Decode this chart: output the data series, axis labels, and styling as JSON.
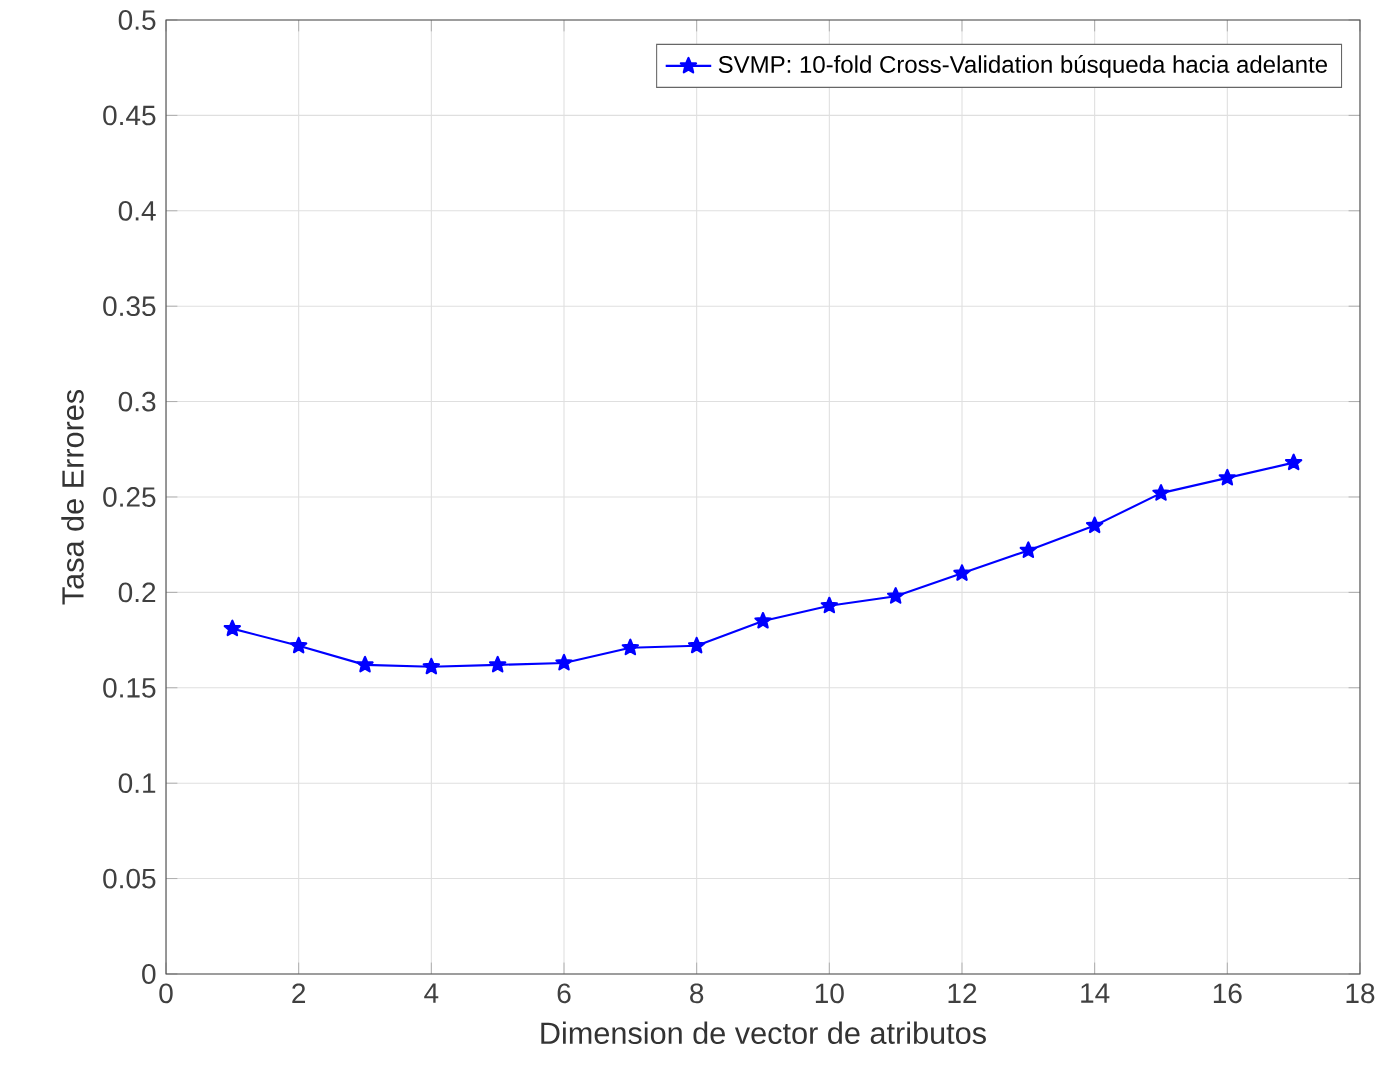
{
  "chart_data": {
    "type": "line",
    "xlabel": "Dimension de vector de atributos",
    "ylabel": "Tasa de Errores",
    "x": [
      1,
      2,
      3,
      4,
      5,
      6,
      7,
      8,
      9,
      10,
      11,
      12,
      13,
      14,
      15,
      16,
      17
    ],
    "series": [
      {
        "name": "SVMP: 10-fold Cross-Validation búsqueda hacia adelante",
        "color": "#0000ff",
        "values": [
          0.181,
          0.172,
          0.162,
          0.161,
          0.162,
          0.163,
          0.171,
          0.172,
          0.185,
          0.193,
          0.198,
          0.21,
          0.222,
          0.235,
          0.252,
          0.26,
          0.268
        ]
      }
    ],
    "xlim": [
      0,
      18
    ],
    "xticks": [
      0,
      2,
      4,
      6,
      8,
      10,
      12,
      14,
      16,
      18
    ],
    "ylim": [
      0,
      0.5
    ],
    "yticks": [
      0,
      0.05,
      0.1,
      0.15,
      0.2,
      0.25,
      0.3,
      0.35,
      0.4,
      0.45,
      0.5
    ],
    "grid": true,
    "legend": "top right",
    "marker": "star",
    "line_style": "solid"
  }
}
